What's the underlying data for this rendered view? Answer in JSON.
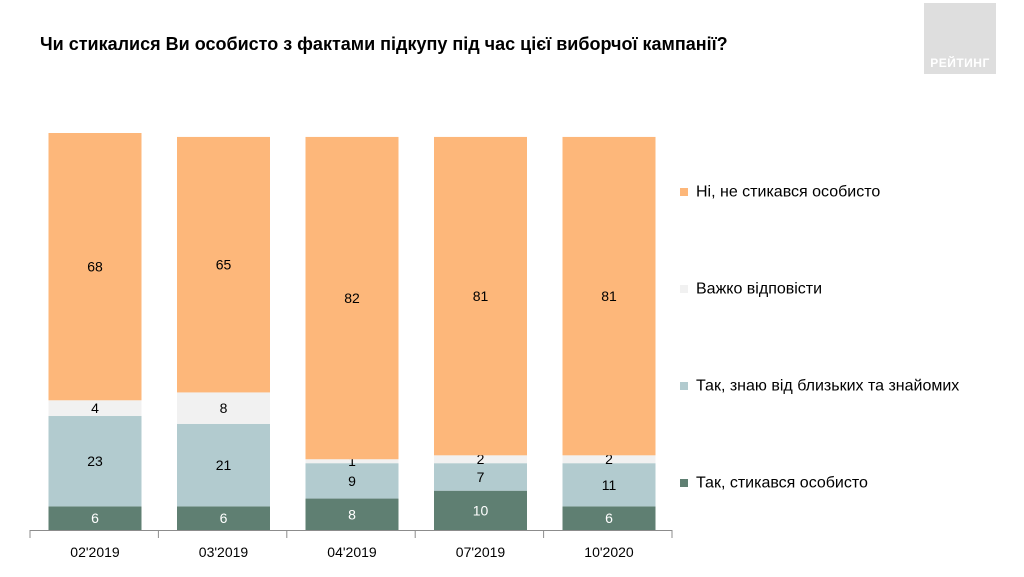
{
  "title": "Чи стикалися Ви особисто з фактами підкупу під час цієї виборчої кампанії?",
  "logo_text": "РЕЙТИНГ",
  "colors": {
    "background": "#ffffff",
    "logo": "#dedede"
  },
  "chart_data": {
    "type": "bar",
    "stacked": true,
    "legend_position": "right",
    "grid": false,
    "ylim": [
      0,
      101
    ],
    "categories": [
      "02'2019",
      "03'2019",
      "04'2019",
      "07'2019",
      "10'2020"
    ],
    "series": [
      {
        "name": "Так, стикався особисто",
        "color": "#5f7f72",
        "label_color": "#ffffff",
        "values": [
          6,
          6,
          8,
          10,
          6
        ]
      },
      {
        "name": "Так, знаю від близьких та знайомих",
        "color": "#b2cbcf",
        "label_color": "#000000",
        "values": [
          23,
          21,
          9,
          7,
          11
        ]
      },
      {
        "name": "Важко відповісти",
        "color": "#f1f1f1",
        "label_color": "#000000",
        "values": [
          4,
          8,
          1,
          2,
          2
        ]
      },
      {
        "name": "Ні, не стикався особисто",
        "color": "#fdb77a",
        "label_color": "#000000",
        "values": [
          68,
          65,
          82,
          81,
          81
        ]
      }
    ]
  }
}
